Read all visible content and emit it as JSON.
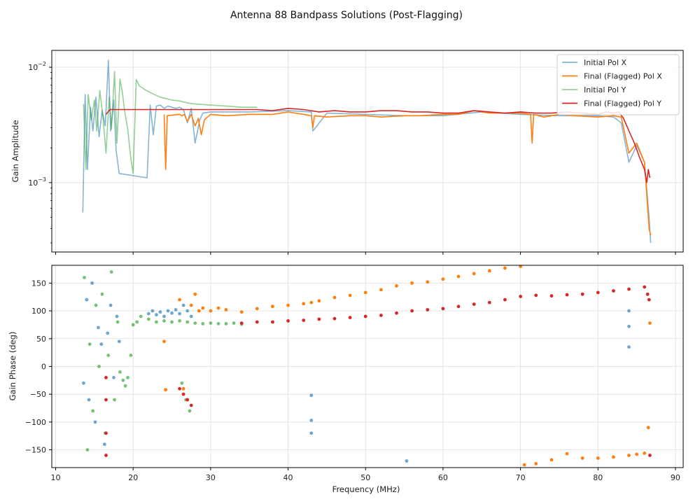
{
  "chart_data": {
    "type": "line",
    "suptitle": "Antenna 88 Bandpass Solutions (Post-Flagging)",
    "xlabel": "Frequency (MHz)",
    "xlim": [
      9.5,
      91
    ],
    "xticks": [
      10,
      20,
      30,
      40,
      50,
      60,
      70,
      80,
      90
    ],
    "colors": {
      "initial_x": "#1f77b4",
      "final_x": "#ff7f0e",
      "initial_y": "#2ca02c",
      "final_y": "#d62728"
    },
    "amplitude_panel": {
      "ylabel": "Gain Amplitude",
      "yscale": "log",
      "ylim": [
        0.00025,
        0.014
      ],
      "yticks": [
        {
          "value": 0.01,
          "base": "10",
          "exp": "−2"
        },
        {
          "value": 0.001,
          "base": "10",
          "exp": "−3"
        }
      ],
      "legend": {
        "placement": "top-right",
        "entries": [
          {
            "label": "Initial Pol X",
            "series": "initial_x"
          },
          {
            "label": "Final (Flagged) Pol X",
            "series": "final_x"
          },
          {
            "label": "Initial Pol Y",
            "series": "initial_y"
          },
          {
            "label": "Final (Flagged) Pol Y",
            "series": "final_y"
          }
        ]
      },
      "series": [
        {
          "name": "Initial Pol X",
          "key": "initial_x",
          "x": [
            13.5,
            13.8,
            14.1,
            14.5,
            14.8,
            15.2,
            15.6,
            16.0,
            16.4,
            16.8,
            17.1,
            17.5,
            17.8,
            18.2,
            21.8,
            22.2,
            22.6,
            23.0,
            23.5,
            24.0,
            24.5,
            25.0,
            25.5,
            26.0,
            26.5,
            27.0,
            27.5,
            28.0,
            28.6,
            29.0,
            30.0,
            32.0,
            35.0,
            40.0,
            43.0,
            43.2,
            45.0,
            50.0,
            55.0,
            60.0,
            65.0,
            70.0,
            75.0,
            80.0,
            82.0,
            83.0,
            84.0,
            85.0,
            86.0,
            86.6,
            86.8
          ],
          "y": [
            0.00055,
            0.0058,
            0.0013,
            0.0045,
            0.0028,
            0.0055,
            0.0025,
            0.0042,
            0.0031,
            0.0115,
            0.0028,
            0.0052,
            0.0019,
            0.0012,
            0.0011,
            0.0047,
            0.0026,
            0.0046,
            0.0047,
            0.0044,
            0.0046,
            0.0045,
            0.0044,
            0.0045,
            0.0043,
            0.0033,
            0.0044,
            0.0022,
            0.0035,
            0.004,
            0.0041,
            0.0041,
            0.0041,
            0.0042,
            0.0041,
            0.0028,
            0.004,
            0.0039,
            0.0038,
            0.0038,
            0.0041,
            0.0039,
            0.0038,
            0.0038,
            0.0037,
            0.0033,
            0.0015,
            0.0021,
            0.0015,
            0.0005,
            0.0003
          ]
        },
        {
          "name": "Final (Flagged) Pol X",
          "key": "final_x",
          "x": [
            24.0,
            24.2,
            24.4,
            26.0,
            26.3,
            26.6,
            27.0,
            27.5,
            28.0,
            28.4,
            28.8,
            29.2,
            30.0,
            32.0,
            35.0,
            38.0,
            40.0,
            42.0,
            43.0,
            43.2,
            43.4,
            45.0,
            48.0,
            50.0,
            52.0,
            55.0,
            57.0,
            60.0,
            62.0,
            64.0,
            66.0,
            68.0,
            70.0,
            71.3,
            71.5,
            71.7,
            73.0,
            75.0,
            77.0,
            80.0,
            82.0,
            83.0,
            84.0,
            85.0,
            86.0,
            86.6,
            86.8
          ],
          "y": [
            0.0039,
            0.0013,
            0.0038,
            0.0039,
            0.0038,
            0.0039,
            0.0034,
            0.0039,
            0.0031,
            0.0036,
            0.0026,
            0.0035,
            0.0039,
            0.0038,
            0.0039,
            0.0039,
            0.0041,
            0.0039,
            0.0038,
            0.003,
            0.0038,
            0.0037,
            0.0038,
            0.0038,
            0.0037,
            0.0038,
            0.0038,
            0.0039,
            0.0039,
            0.0042,
            0.004,
            0.004,
            0.004,
            0.0039,
            0.0022,
            0.0039,
            0.0037,
            0.0039,
            0.0038,
            0.0037,
            0.0038,
            0.0037,
            0.0018,
            0.0022,
            0.0015,
            0.0004,
            0.00035
          ]
        },
        {
          "name": "Initial Pol Y",
          "key": "initial_y",
          "x": [
            13.6,
            13.9,
            14.2,
            14.6,
            15.0,
            15.3,
            15.7,
            16.1,
            16.5,
            16.9,
            17.2,
            17.6,
            17.9,
            18.3,
            18.6,
            18.9,
            19.3,
            19.7,
            20.0,
            20.4,
            20.8,
            21.5,
            22.5,
            23.5,
            25.0,
            26.0,
            27.0,
            28.0,
            30.0,
            32.0,
            34.0,
            36.0
          ],
          "y": [
            0.0048,
            0.0013,
            0.0058,
            0.0035,
            0.0052,
            0.0028,
            0.0063,
            0.0037,
            0.0018,
            0.0055,
            0.0029,
            0.0092,
            0.0022,
            0.0079,
            0.0061,
            0.0042,
            0.0029,
            0.0016,
            0.0012,
            0.0078,
            0.0069,
            0.0064,
            0.0059,
            0.0055,
            0.0052,
            0.0051,
            0.0049,
            0.0048,
            0.0047,
            0.0046,
            0.0045,
            0.0045
          ]
        },
        {
          "name": "Final (Flagged) Pol Y",
          "key": "final_y",
          "x": [
            16.5,
            17.0,
            34.0,
            36.0,
            38.0,
            40.0,
            42.0,
            44.0,
            46.0,
            48.0,
            50.0,
            52.0,
            54.0,
            56.0,
            58.0,
            60.0,
            62.0,
            64.0,
            66.0,
            68.0,
            70.0,
            72.0,
            74.0,
            76.0,
            78.0,
            80.0,
            81.0,
            82.0,
            82.7,
            83.3,
            84.0,
            84.7,
            85.3,
            86.0,
            86.3,
            86.5,
            86.7
          ],
          "y": [
            0.0039,
            0.0043,
            0.0043,
            0.0043,
            0.0042,
            0.0044,
            0.0043,
            0.0041,
            0.0042,
            0.0041,
            0.0041,
            0.0042,
            0.0042,
            0.0041,
            0.0041,
            0.004,
            0.004,
            0.0042,
            0.0041,
            0.004,
            0.0041,
            0.004,
            0.004,
            0.0041,
            0.004,
            0.0039,
            0.0041,
            0.004,
            0.0041,
            0.0036,
            0.0028,
            0.0022,
            0.0017,
            0.0013,
            0.001,
            0.0013,
            0.0011
          ]
        }
      ]
    },
    "phase_panel": {
      "ylabel": "Gain Phase (deg)",
      "ylim": [
        -182,
        182
      ],
      "yticks": [
        -150,
        -100,
        -50,
        0,
        50,
        100,
        150
      ],
      "marker": "dot",
      "series": [
        {
          "name": "Initial Pol X",
          "key": "initial_x",
          "x": [
            13.6,
            14.0,
            14.3,
            14.7,
            15.1,
            15.5,
            15.9,
            16.3,
            16.7,
            17.1,
            17.5,
            17.9,
            18.2,
            22.0,
            22.5,
            23.0,
            23.5,
            24.0,
            24.5,
            25.0,
            25.5,
            26.0,
            26.5,
            27.0,
            27.5,
            43.0,
            43.0,
            43.0,
            55.3,
            84.0,
            84.0,
            84.0
          ],
          "y": [
            -30,
            120,
            -60,
            150,
            -100,
            70,
            40,
            -140,
            60,
            110,
            -20,
            90,
            45,
            95,
            100,
            93,
            98,
            90,
            100,
            96,
            102,
            95,
            110,
            100,
            90,
            -52,
            -97,
            -120,
            -170,
            100,
            72,
            35
          ]
        },
        {
          "name": "Final (Flagged) Pol X",
          "key": "final_x",
          "x": [
            24.0,
            24.2,
            26.0,
            26.5,
            27.0,
            27.5,
            28.0,
            28.5,
            29.0,
            30.0,
            31.0,
            32.0,
            34.0,
            36.0,
            38.0,
            40.0,
            42.0,
            43.0,
            44.0,
            46.0,
            48.0,
            50.0,
            52.0,
            54.0,
            56.0,
            58.0,
            60.0,
            62.0,
            64.0,
            66.0,
            68.0,
            70.0,
            70.5,
            72.0,
            74.0,
            76.0,
            78.0,
            80.0,
            82.0,
            84.0,
            85.0,
            86.0,
            86.5,
            86.7
          ],
          "y": [
            45,
            -42,
            120,
            -40,
            -60,
            110,
            130,
            100,
            105,
            100,
            105,
            102,
            98,
            104,
            108,
            110,
            113,
            115,
            118,
            124,
            128,
            133,
            138,
            145,
            150,
            152,
            157,
            162,
            167,
            172,
            177,
            180,
            -177,
            -175,
            -168,
            -157,
            -165,
            -165,
            -163,
            -160,
            -158,
            -156,
            -110,
            78
          ]
        },
        {
          "name": "Initial Pol Y",
          "key": "initial_y",
          "x": [
            13.7,
            14.1,
            14.4,
            14.8,
            15.2,
            15.6,
            16.0,
            16.4,
            16.8,
            17.2,
            17.6,
            18.0,
            18.3,
            18.7,
            19.0,
            19.3,
            19.7,
            20.0,
            20.5,
            21.0,
            22.0,
            23.0,
            24.0,
            25.0,
            26.0,
            27.0,
            28.0,
            29.0,
            30.0,
            31.0,
            32.0,
            33.0,
            34.0,
            26.3,
            26.8,
            27.3
          ],
          "y": [
            160,
            -150,
            40,
            -80,
            110,
            0,
            130,
            -120,
            20,
            170,
            -60,
            80,
            -10,
            -25,
            -35,
            -20,
            20,
            75,
            80,
            90,
            85,
            80,
            82,
            80,
            82,
            80,
            78,
            77,
            78,
            77,
            77,
            78,
            76,
            -30,
            -60,
            -80
          ]
        },
        {
          "name": "Final (Flagged) Pol Y",
          "key": "final_y",
          "x": [
            16.5,
            16.5,
            16.5,
            16.5,
            26.0,
            26.5,
            27.0,
            27.5,
            34.0,
            36.0,
            38.0,
            40.0,
            42.0,
            44.0,
            46.0,
            48.0,
            50.0,
            52.0,
            54.0,
            56.0,
            58.0,
            60.0,
            62.0,
            64.0,
            66.0,
            68.0,
            70.0,
            72.0,
            74.0,
            76.0,
            78.0,
            80.0,
            82.0,
            84.0,
            86.0,
            86.4,
            86.6,
            86.7
          ],
          "y": [
            -20,
            -60,
            -120,
            -160,
            -40,
            -50,
            -60,
            -70,
            78,
            80,
            80,
            82,
            83,
            85,
            86,
            88,
            90,
            92,
            96,
            100,
            102,
            104,
            108,
            112,
            115,
            120,
            126,
            128,
            127,
            129,
            130,
            133,
            136,
            139,
            143,
            130,
            120,
            -160
          ]
        }
      ]
    }
  }
}
